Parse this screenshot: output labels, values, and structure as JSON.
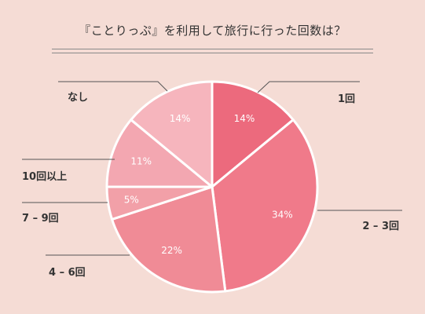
{
  "chart_data": {
    "type": "pie",
    "title": "『ことりっぷ』を利用して旅行に行った回数は？",
    "categories": [
      "1回",
      "2 – 3回",
      "4 – 6回",
      "7 – 9回",
      "10回以上",
      "なし"
    ],
    "values": [
      14,
      34,
      22,
      5,
      11,
      14
    ],
    "value_labels": [
      "14%",
      "34%",
      "22%",
      "5%",
      "11%",
      "14%"
    ],
    "colors": [
      "#ec6a7d",
      "#f07a8a",
      "#f08b96",
      "#f2a0a8",
      "#f3a7b1",
      "#f6b5bd"
    ],
    "start": "12 o'clock",
    "direction": "clockwise",
    "legend": "callout lines",
    "background": "#f5dcd5"
  }
}
